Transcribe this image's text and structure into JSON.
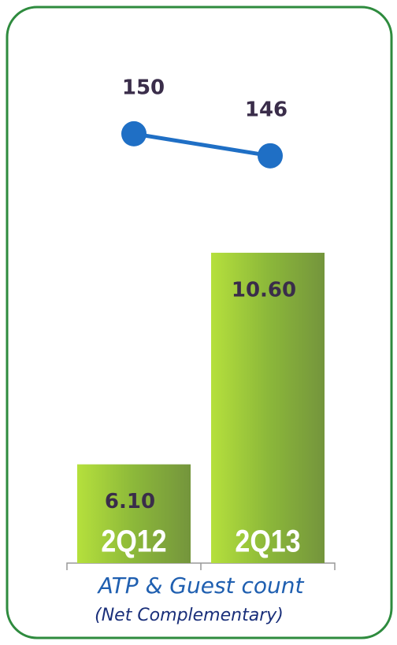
{
  "chart_data": {
    "type": "bar_line",
    "categories": [
      "2Q12",
      "2Q13"
    ],
    "series": [
      {
        "type": "bar",
        "color": "#8cb83a",
        "values": [
          6.1,
          10.6
        ],
        "value_labels": [
          "6.10",
          "10.60"
        ]
      },
      {
        "type": "line",
        "axis": "y2",
        "color": "#1f6fc5",
        "values": [
          150,
          146
        ]
      }
    ],
    "ylim": [
      4,
      14.3
    ],
    "y2lim": [
      72,
      160
    ],
    "xlabel": "ATP & Guest count",
    "xlabel_note": "(Net Complementary)"
  }
}
